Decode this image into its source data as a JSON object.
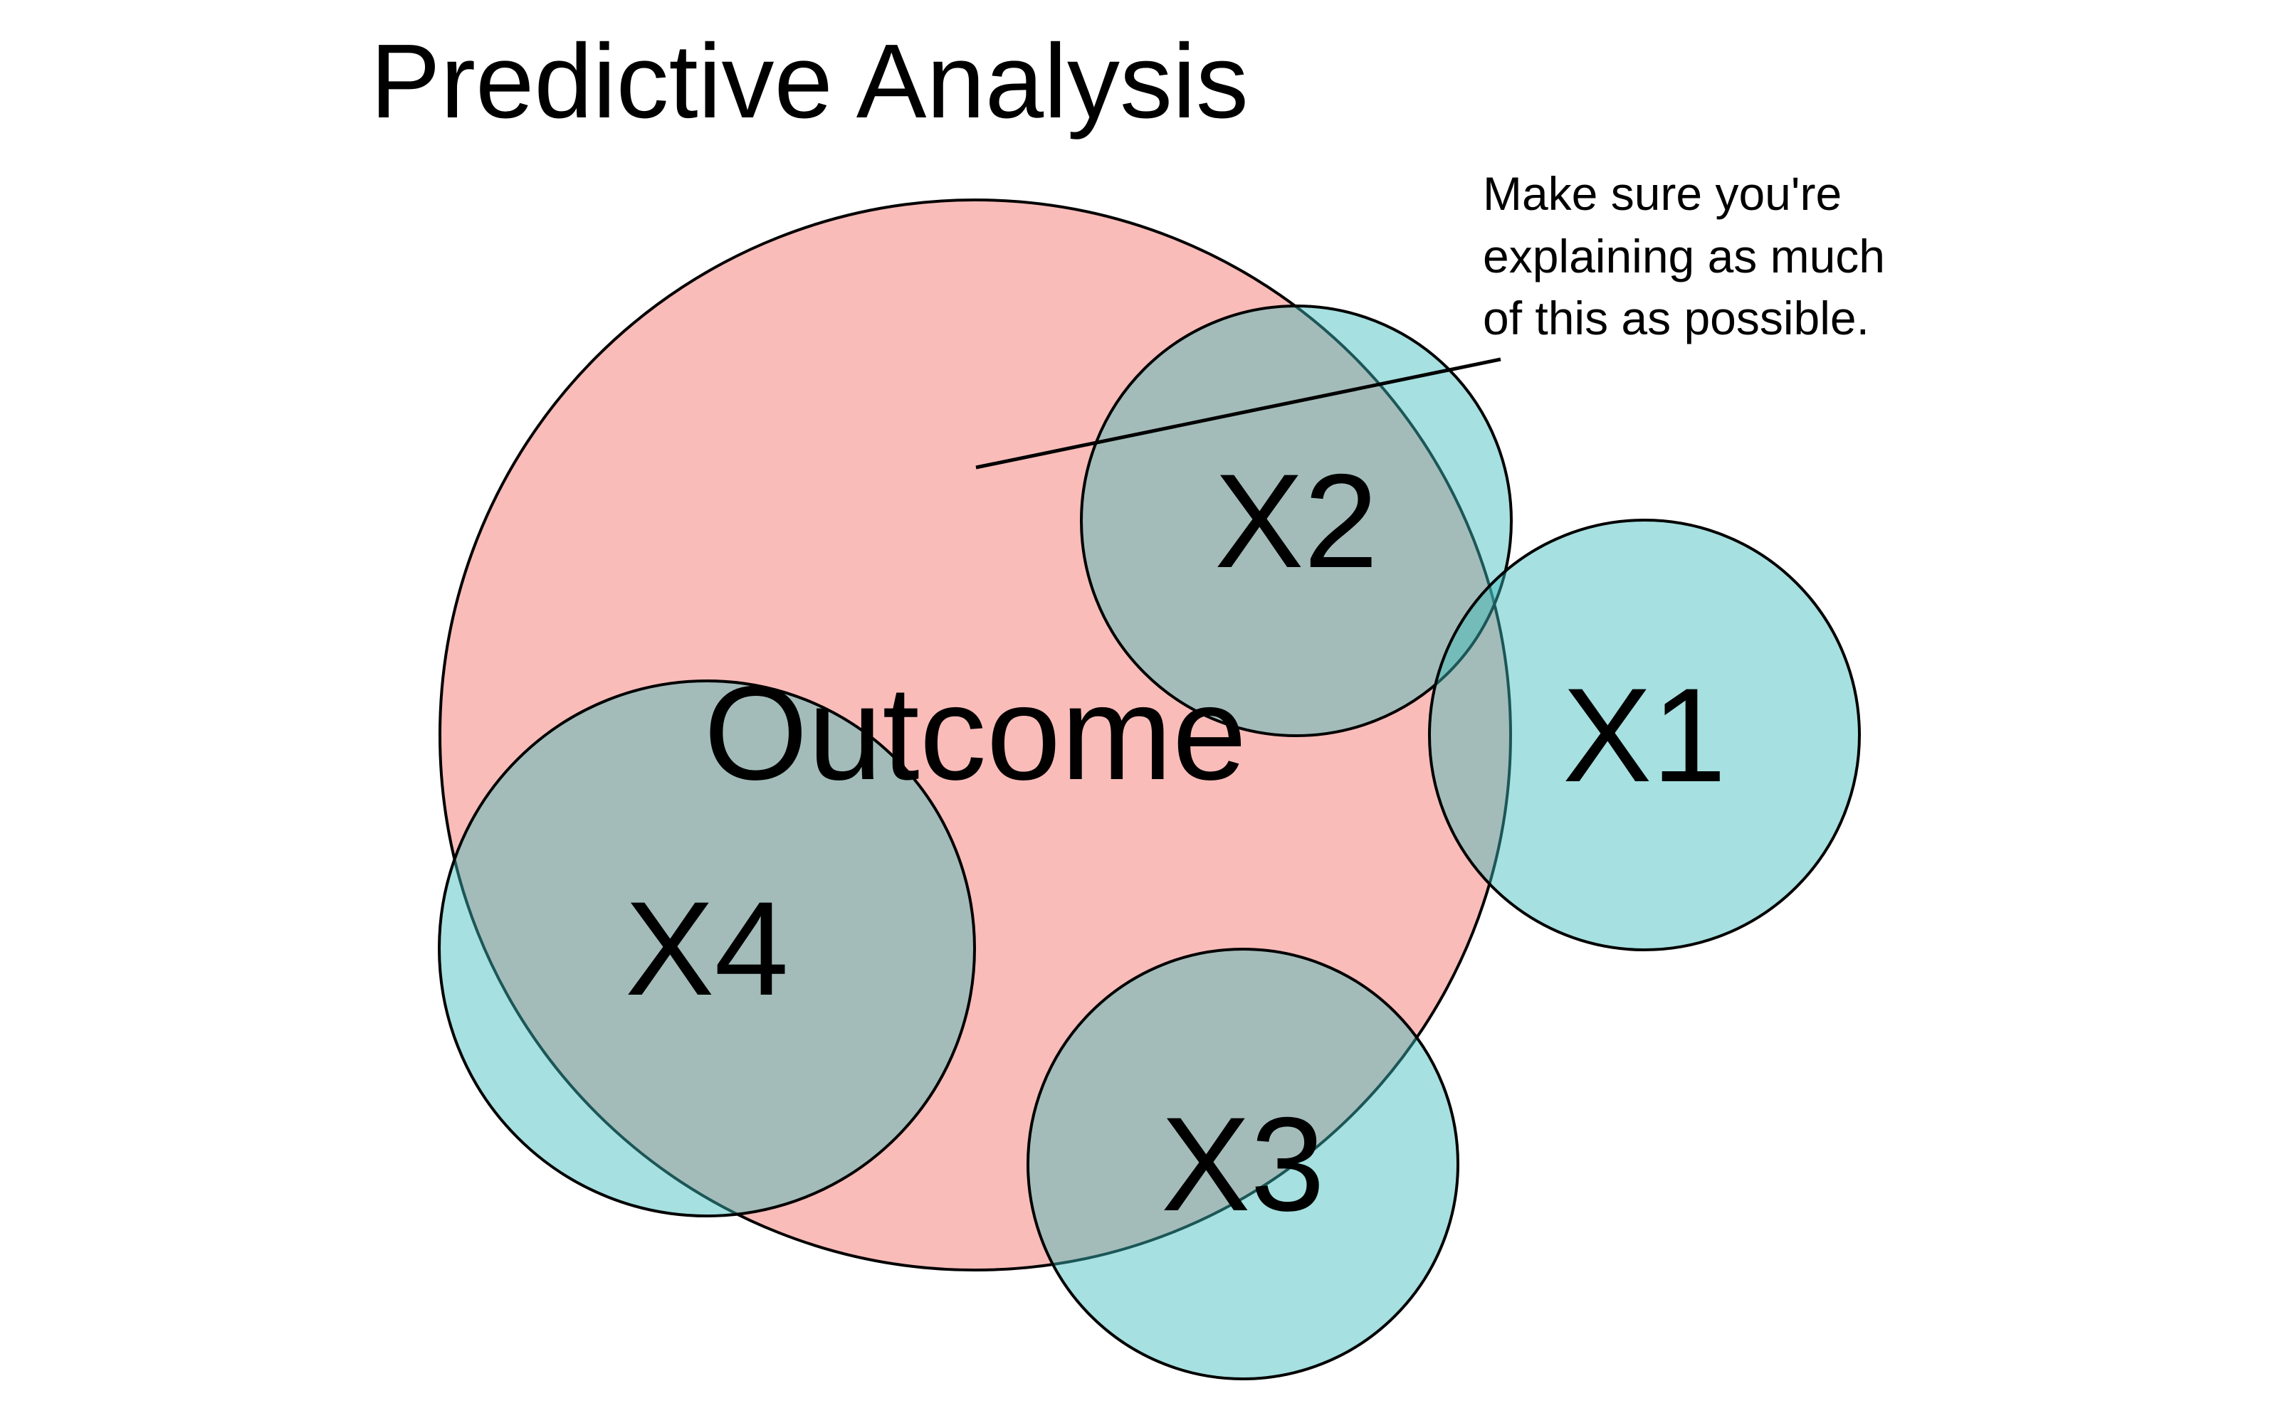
{
  "title": "Predictive Analysis",
  "outcome": {
    "label": "Outcome",
    "fill": "#f4857f",
    "fill_opacity": 0.55
  },
  "predictors": [
    {
      "id": "x1",
      "label": "X1"
    },
    {
      "id": "x2",
      "label": "X2"
    },
    {
      "id": "x3",
      "label": "X3"
    },
    {
      "id": "x4",
      "label": "X4"
    }
  ],
  "predictor_fill": "#3cbcbc",
  "predictor_fill_opacity": 0.46,
  "stroke": "#000000",
  "annotation": {
    "lines": [
      "Make sure you're",
      "explaining as much",
      "of this as possible."
    ]
  }
}
